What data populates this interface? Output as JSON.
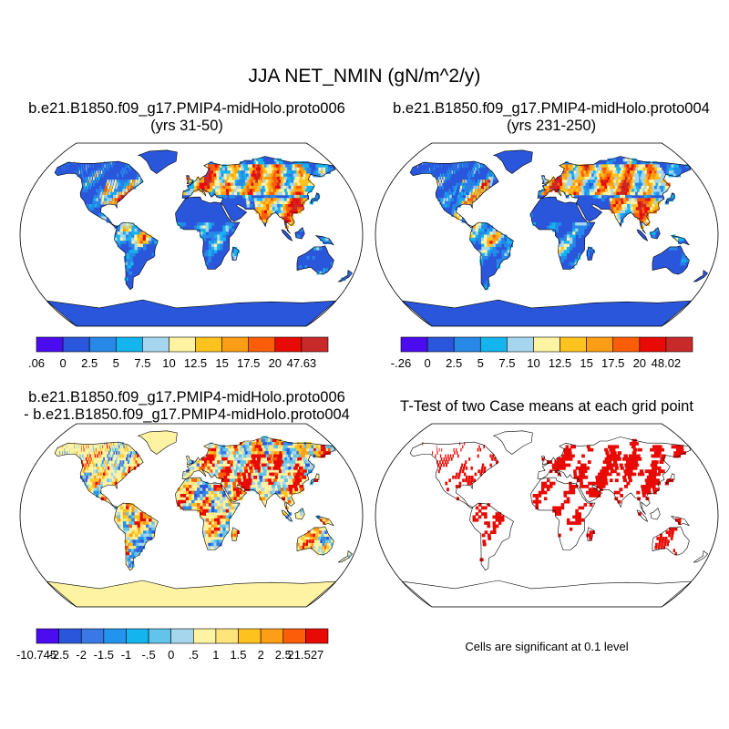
{
  "title": "JJA NET_NMIN (gN/m^2/y)",
  "panels": {
    "top_left": {
      "title_line1": "b.e21.B1850.f09_g17.PMIP4-midHolo.proto006",
      "title_line2": "(yrs 31-50)",
      "colorbar_labels": [
        ".06",
        "0",
        "2.5",
        "5",
        "7.5",
        "10",
        "12.5",
        "15",
        "17.5",
        "20",
        "47.63"
      ],
      "colorbar_min": ".06"
    },
    "top_right": {
      "title_line1": "b.e21.B1850.f09_g17.PMIP4-midHolo.proto004",
      "title_line2": "(yrs 231-250)",
      "colorbar_labels": [
        "-.26",
        "0",
        "2.5",
        "5",
        "7.5",
        "10",
        "12.5",
        "15",
        "17.5",
        "20",
        "48.02"
      ]
    },
    "bottom_left": {
      "title_line1": "b.e21.B1850.f09_g17.PMIP4-midHolo.proto006",
      "title_line2": "- b.e21.B1850.f09_g17.PMIP4-midHolo.proto004",
      "colorbar_labels": [
        "-10.745",
        "-2.5",
        "-2",
        "-1.5",
        "-1",
        "-.5",
        "0",
        ".5",
        "1",
        "1.5",
        "2",
        "2.5",
        "21.527"
      ]
    },
    "bottom_right": {
      "title": "T-Test of two Case means at each grid point",
      "note": "Cells are significant at 0.1 level"
    }
  },
  "colors": {
    "abs_scale": [
      "#4b0cf0",
      "#2a56dc",
      "#2788e8",
      "#14b4ee",
      "#a6d6ee",
      "#fef3a2",
      "#fec21e",
      "#fe9d16",
      "#fb5d08",
      "#e80a04",
      "#c82a2a"
    ],
    "diff_scale": [
      "#4b0cf0",
      "#2a56dc",
      "#3a78e6",
      "#2294ee",
      "#14b4ee",
      "#62c4ea",
      "#a6d6ee",
      "#fef3a2",
      "#fee47a",
      "#fec21e",
      "#fe9d16",
      "#fb5d08",
      "#e80a04",
      "#c82a2a"
    ],
    "significant": "#e80a04",
    "land_base_abs": "#2a56dc",
    "land_base_diff": "#fef3a2"
  }
}
